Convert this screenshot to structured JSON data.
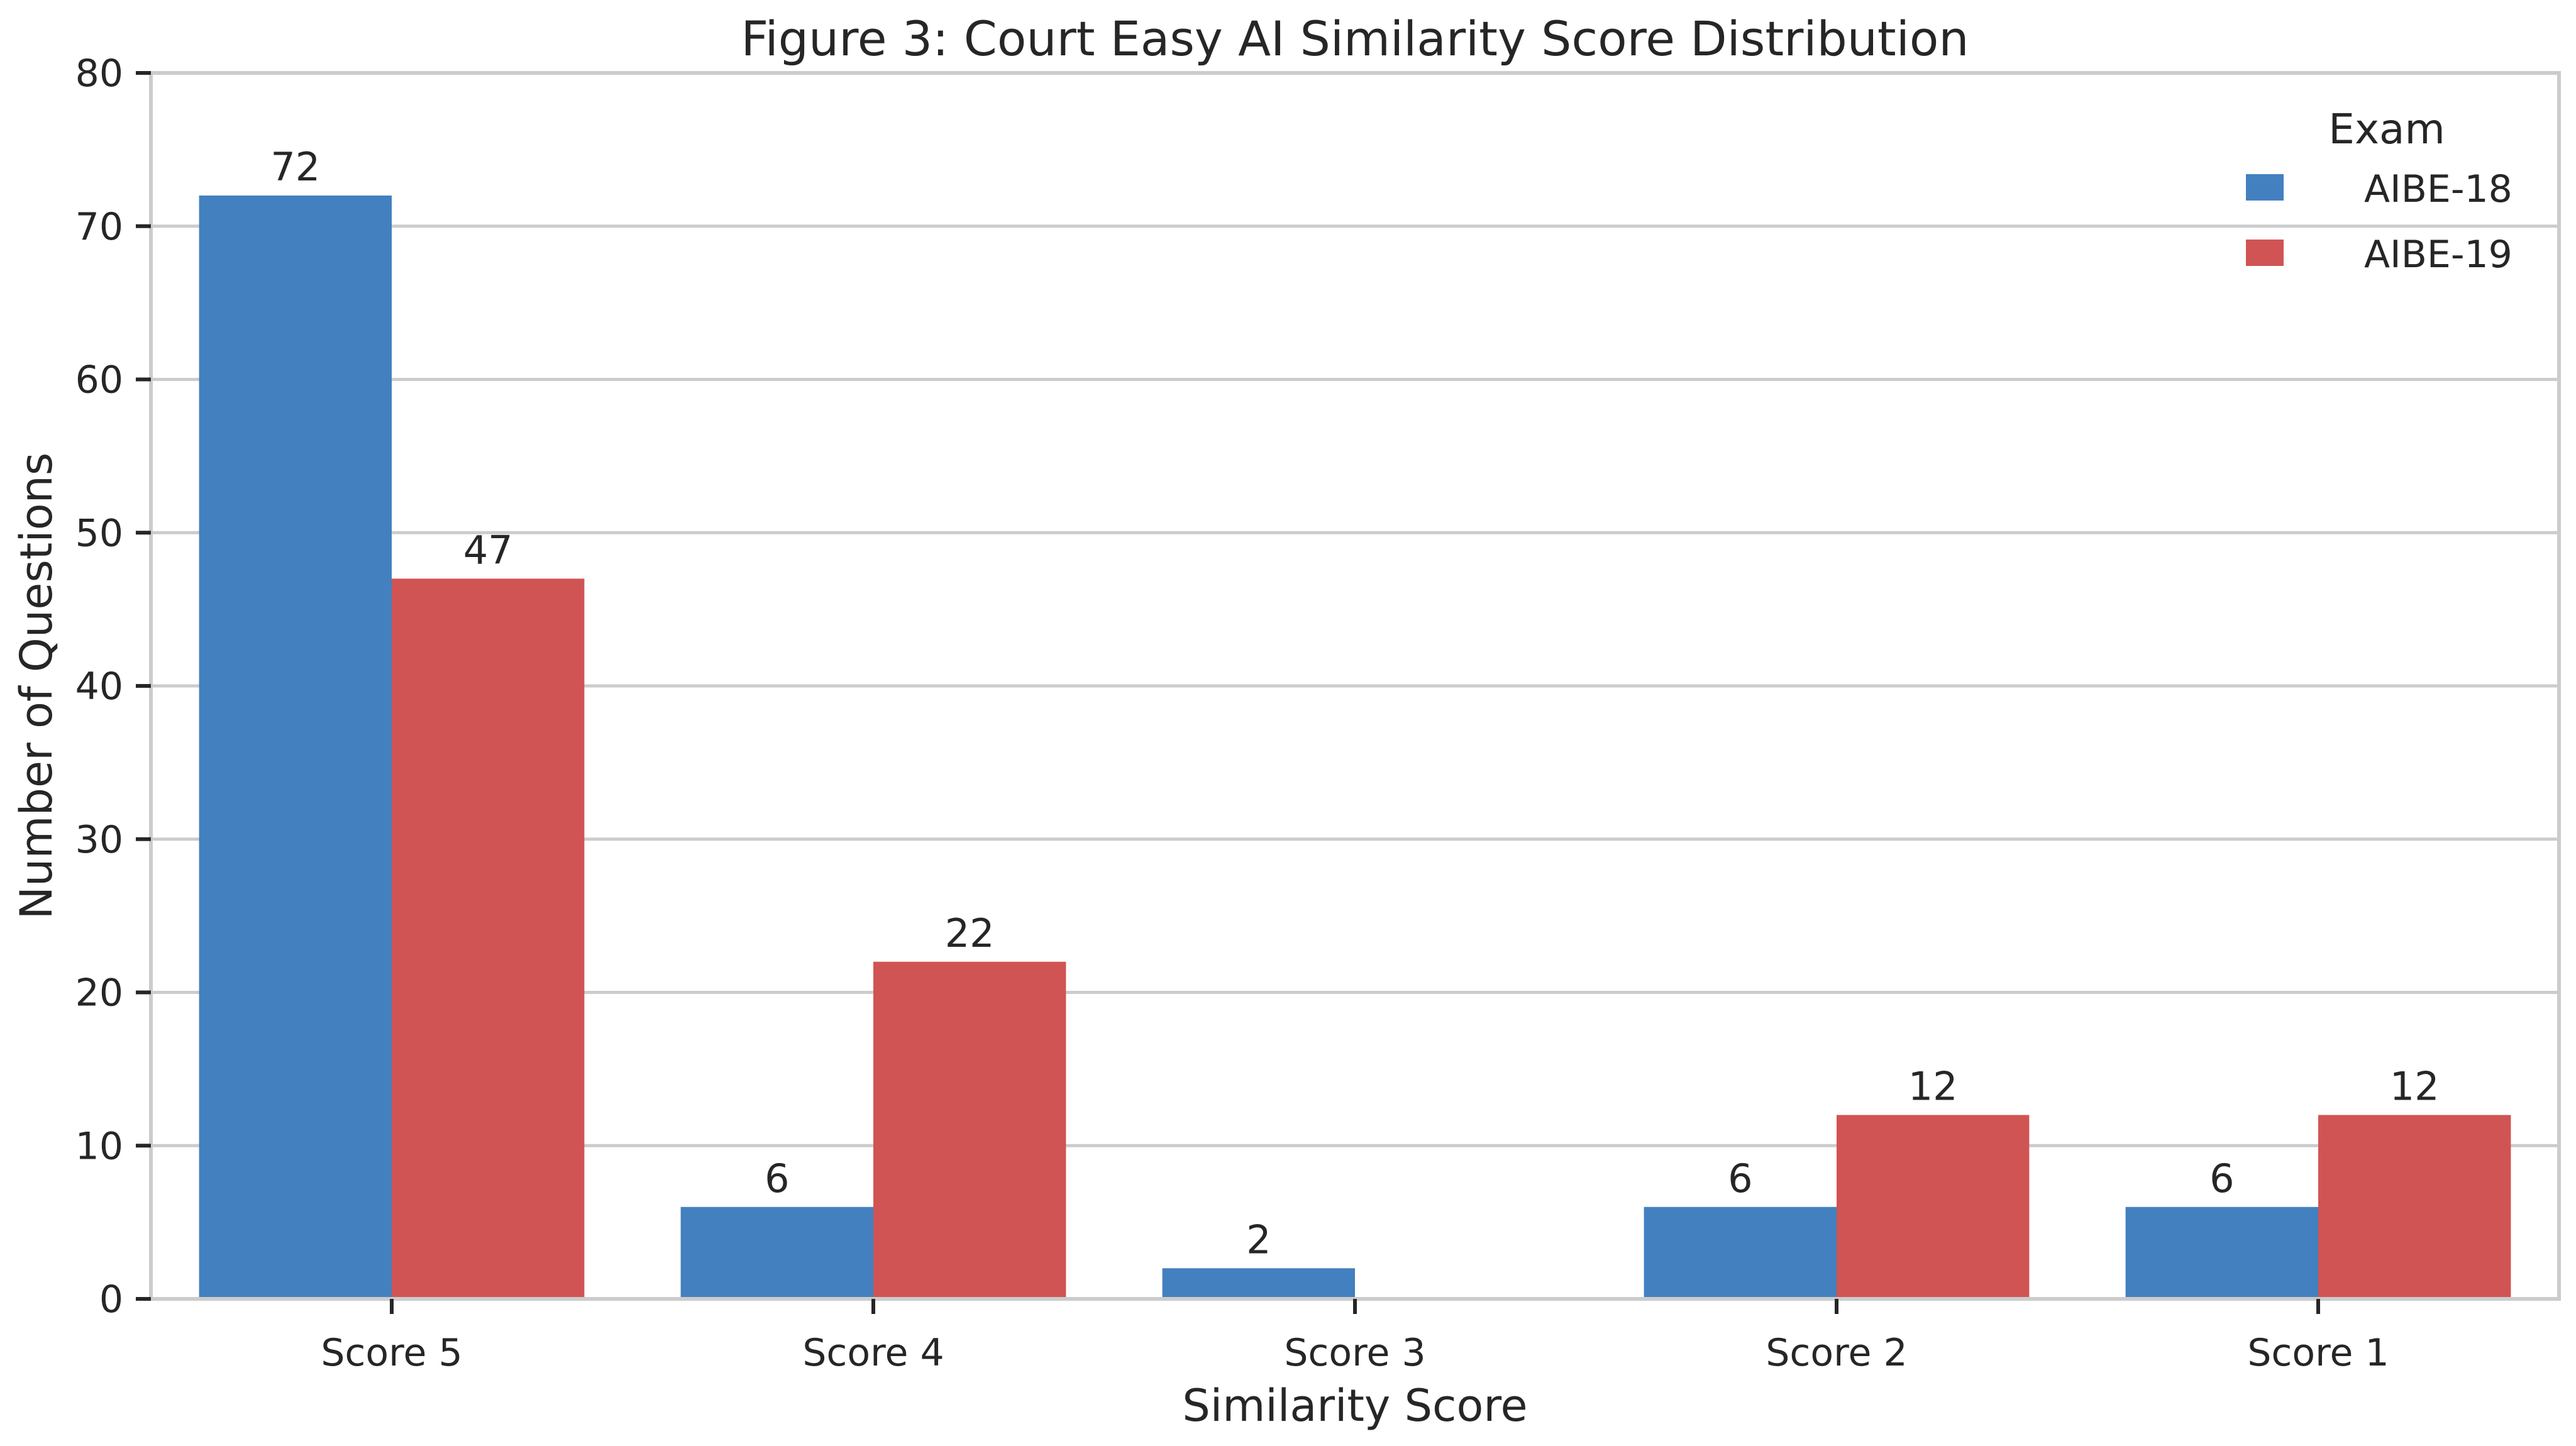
{
  "chart_data": {
    "type": "bar",
    "title": "Figure 3: Court Easy AI Similarity Score Distribution",
    "xlabel": "Similarity Score",
    "ylabel": "Number of Questions",
    "categories": [
      "Score 5",
      "Score 4",
      "Score 3",
      "Score 2",
      "Score 1"
    ],
    "series": [
      {
        "name": "AIBE-18",
        "color": "#4380bf",
        "values": [
          72,
          6,
          2,
          6,
          6
        ]
      },
      {
        "name": "AIBE-19",
        "color": "#d05453",
        "values": [
          47,
          22,
          0,
          12,
          12
        ]
      }
    ],
    "ylim": [
      0,
      80
    ],
    "yticks": [
      0,
      10,
      20,
      30,
      40,
      50,
      60,
      70,
      80
    ],
    "grid": "horizontal",
    "legend": {
      "title": "Exam",
      "placement": "top-right"
    }
  }
}
